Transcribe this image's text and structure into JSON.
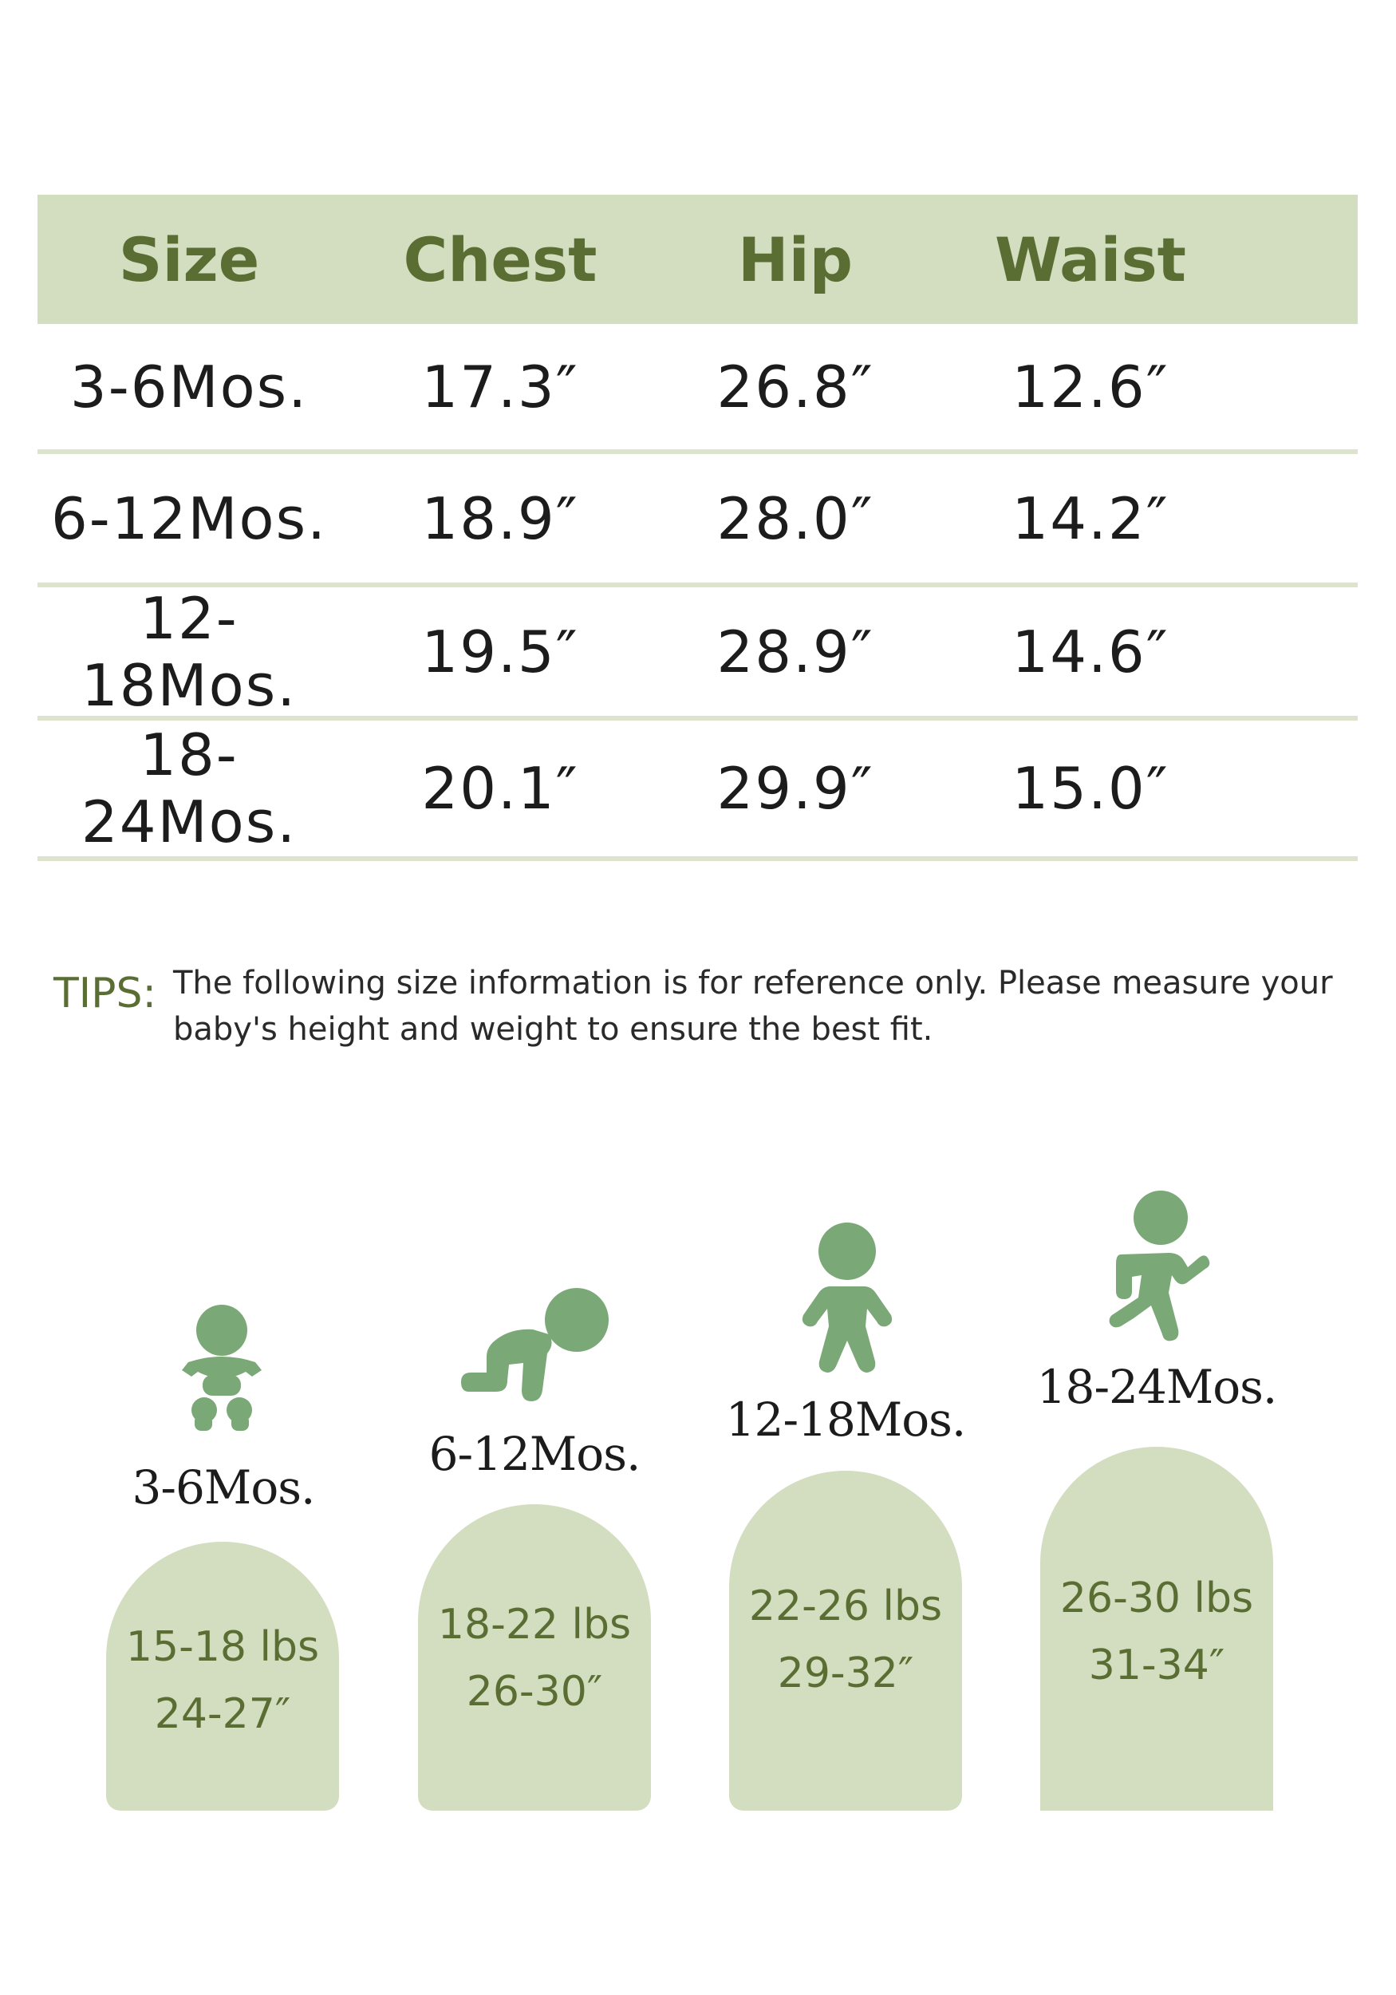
{
  "table": {
    "headers": [
      "Size",
      "Chest",
      "Hip",
      "Waist"
    ],
    "rows": [
      [
        "3-6Mos.",
        "17.3″",
        "26.8″",
        "12.6″"
      ],
      [
        "6-12Mos.",
        "18.9″",
        "28.0″",
        "14.2″"
      ],
      [
        "12-18Mos.",
        "19.5″",
        "28.9″",
        "14.6″"
      ],
      [
        "18-24Mos.",
        "20.1″",
        "29.9″",
        "15.0″"
      ]
    ]
  },
  "tips": {
    "label": "TIPS:",
    "text": "The following size information is for reference only. Please measure your baby's height and weight to ensure the best fit."
  },
  "stages": [
    {
      "age": "3-6Mos.",
      "weight": "15-18 lbs",
      "height": "24-27″",
      "icon": "baby-sitting-icon"
    },
    {
      "age": "6-12Mos.",
      "weight": "18-22 lbs",
      "height": "26-30″",
      "icon": "baby-crawling-icon"
    },
    {
      "age": "12-18Mos.",
      "weight": "22-26 lbs",
      "height": "29-32″",
      "icon": "toddler-standing-icon"
    },
    {
      "age": "18-24Mos.",
      "weight": "26-30 lbs",
      "height": "31-34″",
      "icon": "toddler-running-icon"
    }
  ],
  "colors": {
    "accent": "#5a6e34",
    "panel": "#d3ddbf",
    "icon": "#7ba877"
  }
}
